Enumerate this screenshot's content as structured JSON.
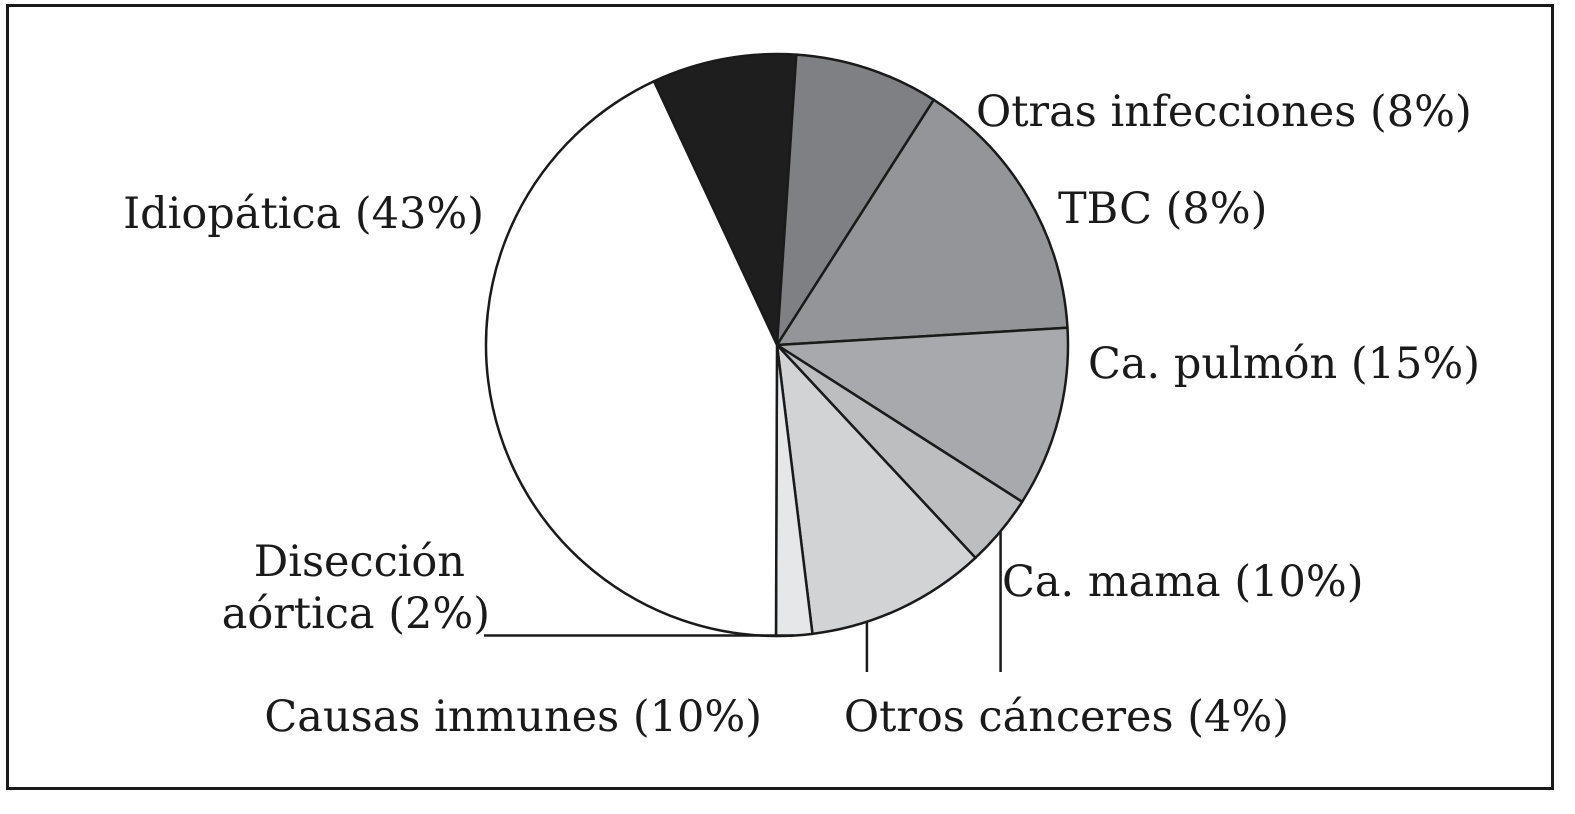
{
  "chart_data": {
    "type": "pie",
    "title": "",
    "slices": [
      {
        "label": "Otras infecciones (8%)",
        "value": 8,
        "color": "#1e1e1e"
      },
      {
        "label": "TBC (8%)",
        "value": 8,
        "color": "#7e8083"
      },
      {
        "label": "Ca. pulmón (15%)",
        "value": 15,
        "color": "#939598"
      },
      {
        "label": "Ca. mama (10%)",
        "value": 10,
        "color": "#a7a9ac"
      },
      {
        "label": "Otros cánceres (4%)",
        "value": 4,
        "color": "#bcbec0"
      },
      {
        "label": "Causas inmunes (10%)",
        "value": 10,
        "color": "#d1d3d4"
      },
      {
        "label": "Disección aórtica (2%)",
        "value": 2,
        "color": "#e6e7e8",
        "label_lines": [
          "Disección",
          "aórtica (2%)"
        ]
      },
      {
        "label": "Idiopática (43%)",
        "value": 43,
        "color": "#ffffff"
      }
    ],
    "legend": "none"
  }
}
